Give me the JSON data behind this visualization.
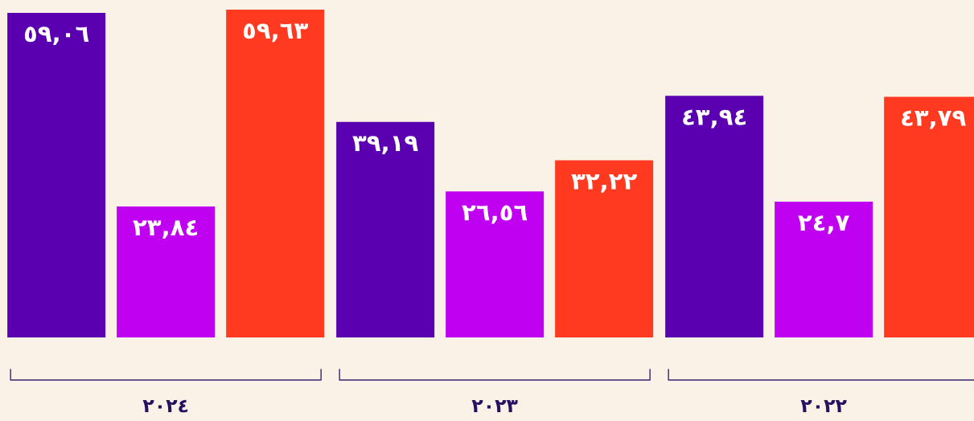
{
  "chart_data": {
    "type": "bar",
    "categories": [
      "٢٠٢٤",
      "٢٠٢٣",
      "٢٠٢٢"
    ],
    "series": [
      {
        "color": "#5a00b0",
        "values": [
          59.06,
          39.19,
          43.94
        ],
        "value_labels": [
          "٥٩,٠٦",
          "٣٩,١٩",
          "٤٣,٩٤"
        ]
      },
      {
        "color": "#c000f0",
        "values": [
          23.84,
          26.56,
          24.7
        ],
        "value_labels": [
          "٢٣,٨٤",
          "٢٦,٥٦",
          "٢٤,٧"
        ]
      },
      {
        "color": "#ff3a20",
        "values": [
          59.63,
          32.22,
          43.79
        ],
        "value_labels": [
          "٥٩,٦٣",
          "٣٢,٢٢",
          "٤٣,٧٩"
        ]
      }
    ]
  }
}
